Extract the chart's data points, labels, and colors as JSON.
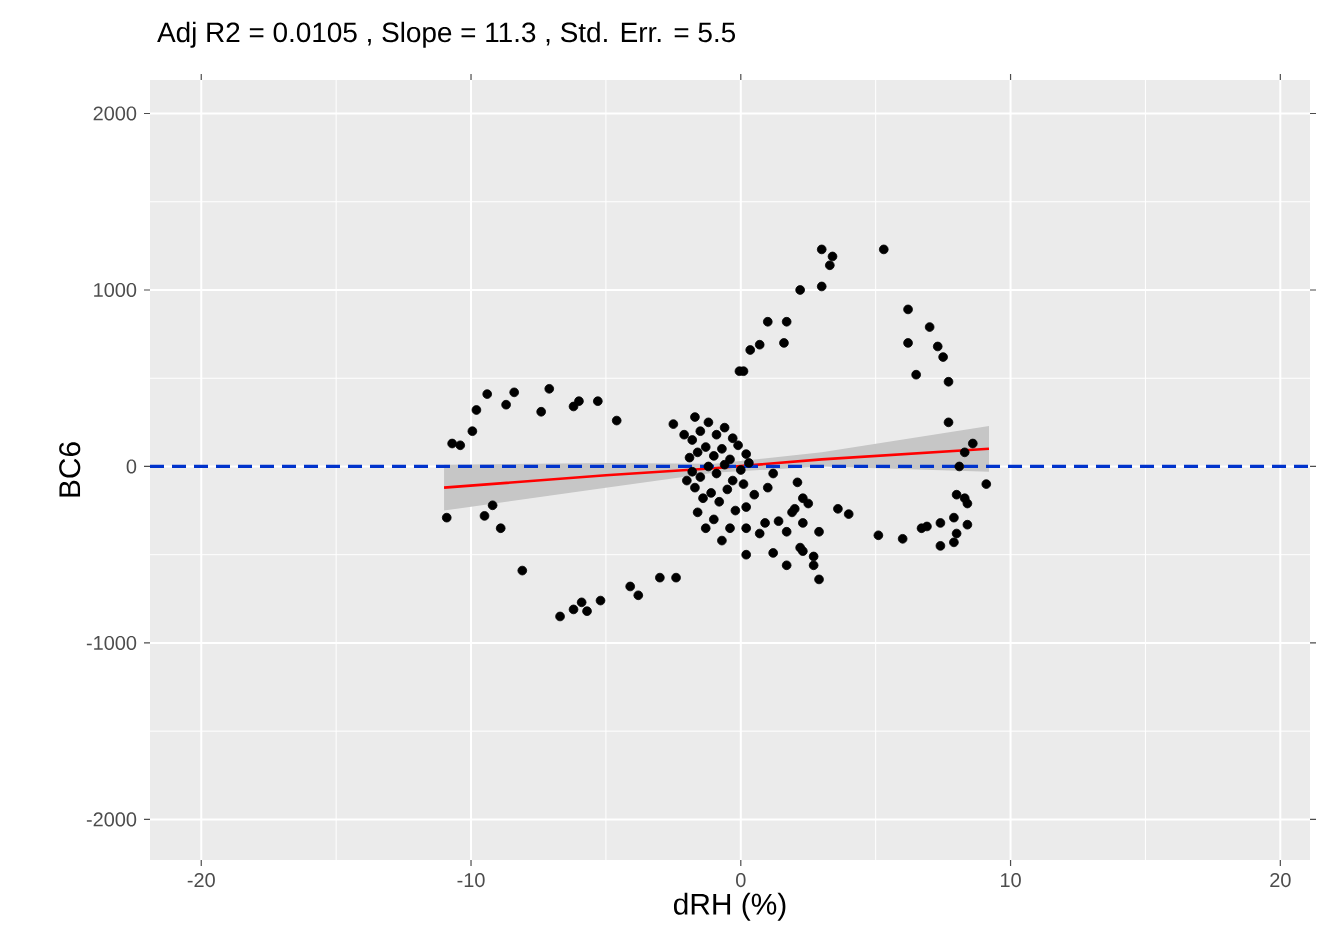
{
  "chart_data": {
    "type": "scatter",
    "title": "Adj R2 =  0.0105 , Slope = 11.3 , Std. Err. = 5.5",
    "xlabel": "dRH (%)",
    "ylabel": "BC6",
    "xlim": [
      -21.9,
      21.1
    ],
    "ylim": [
      -2230,
      2190
    ],
    "xticks": [
      -20,
      -10,
      0,
      10,
      20
    ],
    "yticks": [
      -2000,
      -1000,
      0,
      1000,
      2000
    ],
    "grid": true,
    "series": [
      {
        "color": "#000000",
        "x": [
          -10.9,
          -10.7,
          -10.4,
          -9.95,
          -9.8,
          -9.4,
          -8.7,
          -8.4,
          -7.4,
          -7.1,
          -6.2,
          -6.0,
          -5.3,
          -4.6,
          -2.5,
          -2.1,
          -1.7,
          -9.5,
          -9.2,
          -8.9,
          -8.1,
          -6.7,
          -6.2,
          -5.9,
          -5.7,
          -5.2,
          -4.1,
          -3.8,
          -3.0,
          -2.4,
          -0.05,
          0.1,
          0.35,
          3.0,
          3.4,
          3.3,
          5.3,
          2.2,
          3.0,
          1.0,
          1.7,
          0.7,
          1.6,
          6.2,
          7.0,
          6.2,
          7.3,
          7.5,
          6.5,
          7.7,
          7.7,
          8.6,
          8.3,
          8.1,
          9.1,
          8.0,
          8.3,
          8.4,
          7.9,
          8.4,
          7.4,
          8.0,
          7.9,
          7.4,
          6.9,
          6.7,
          6.0,
          5.1,
          3.6,
          4.0,
          2.9,
          2.3,
          2.5,
          2.3,
          2.0,
          1.9,
          1.7,
          1.4,
          1.2,
          1.7,
          2.2,
          2.3,
          2.7,
          2.7,
          2.9,
          2.1,
          1.2,
          1.0,
          0.5,
          0.2,
          0.2,
          0.7,
          0.9,
          0.2,
          -1.8,
          -1.5,
          -1.2,
          -0.9,
          -0.6,
          -0.3,
          -1.9,
          -1.6,
          -1.3,
          -1.0,
          -0.7,
          -0.4,
          -0.1,
          0.2,
          -1.8,
          -1.5,
          -1.2,
          -0.9,
          -0.6,
          -0.3,
          0.0,
          0.3,
          -1.7,
          -1.4,
          -1.1,
          -0.8,
          -0.5,
          -0.2,
          -1.6,
          -1.0,
          -0.4,
          -0.7,
          -1.3,
          0.1,
          -2.0
        ],
        "values": [
          -290,
          130,
          120,
          200,
          320,
          410,
          350,
          420,
          310,
          440,
          340,
          370,
          370,
          260,
          240,
          180,
          280,
          -280,
          -220,
          -350,
          -590,
          -850,
          -810,
          -770,
          -820,
          -760,
          -680,
          -730,
          -630,
          -630,
          540,
          540,
          660,
          1230,
          1190,
          1140,
          1230,
          1000,
          1020,
          820,
          820,
          690,
          700,
          890,
          790,
          700,
          680,
          620,
          520,
          480,
          250,
          130,
          80,
          0,
          -100,
          -160,
          -180,
          -210,
          -290,
          -330,
          -320,
          -380,
          -430,
          -450,
          -340,
          -350,
          -410,
          -390,
          -240,
          -270,
          -370,
          -320,
          -210,
          -180,
          -240,
          -260,
          -370,
          -310,
          -490,
          -560,
          -460,
          -480,
          -510,
          -560,
          -640,
          -90,
          -40,
          -120,
          -160,
          -230,
          -350,
          -380,
          -320,
          -500,
          150,
          200,
          250,
          180,
          220,
          160,
          50,
          80,
          110,
          60,
          100,
          40,
          120,
          70,
          -30,
          -60,
          0,
          -40,
          10,
          -80,
          -20,
          20,
          -120,
          -180,
          -150,
          -200,
          -130,
          -250,
          -260,
          -300,
          -350,
          -420,
          -350,
          -100,
          -80
        ]
      },
      {
        "type": "line",
        "color": "#ff0000",
        "marker": "none",
        "x": [
          -11,
          -5,
          -1,
          3,
          9.2
        ],
        "values": [
          -120,
          -50,
          -10,
          40,
          100
        ],
        "lower": [
          -250,
          -120,
          -35,
          0,
          -30
        ],
        "upper": [
          10,
          20,
          15,
          80,
          230
        ]
      }
    ],
    "ref_lines": [
      {
        "axis": "y",
        "value": 0,
        "color": "#0033cc",
        "line_style": "dashed"
      }
    ]
  }
}
